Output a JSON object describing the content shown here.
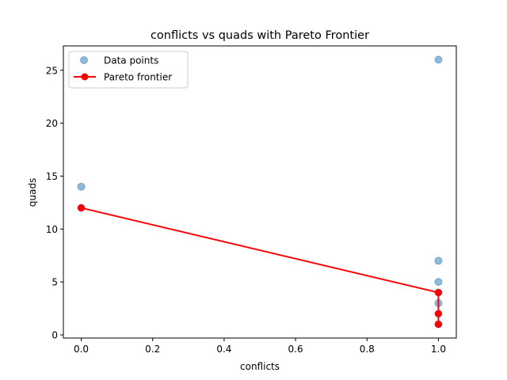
{
  "chart_data": {
    "type": "scatter",
    "title": "conflicts vs quads with Pareto Frontier",
    "xlabel": "conflicts",
    "ylabel": "quads",
    "xlim": [
      -0.05,
      1.05
    ],
    "ylim": [
      -0.3,
      27.3
    ],
    "x_ticks": [
      0.0,
      0.2,
      0.4,
      0.6,
      0.8,
      1.0
    ],
    "x_tick_labels": [
      "0.0",
      "0.2",
      "0.4",
      "0.6",
      "0.8",
      "1.0"
    ],
    "y_ticks": [
      0,
      5,
      10,
      15,
      20,
      25
    ],
    "y_tick_labels": [
      "0",
      "5",
      "10",
      "15",
      "20",
      "25"
    ],
    "grid": false,
    "legend_position": "upper-left",
    "series": [
      {
        "name": "Data points",
        "kind": "scatter",
        "color": "#1f77b4",
        "points": [
          {
            "x": 0,
            "y": 14
          },
          {
            "x": 0,
            "y": 12
          },
          {
            "x": 1,
            "y": 26
          },
          {
            "x": 1,
            "y": 7
          },
          {
            "x": 1,
            "y": 5
          },
          {
            "x": 1,
            "y": 4
          },
          {
            "x": 1,
            "y": 3
          },
          {
            "x": 1,
            "y": 2
          },
          {
            "x": 1,
            "y": 1
          }
        ]
      },
      {
        "name": "Pareto frontier",
        "kind": "line",
        "color": "#ff0000",
        "points": [
          {
            "x": 0,
            "y": 12
          },
          {
            "x": 1,
            "y": 4
          },
          {
            "x": 1,
            "y": 2
          },
          {
            "x": 1,
            "y": 1
          }
        ]
      }
    ]
  }
}
